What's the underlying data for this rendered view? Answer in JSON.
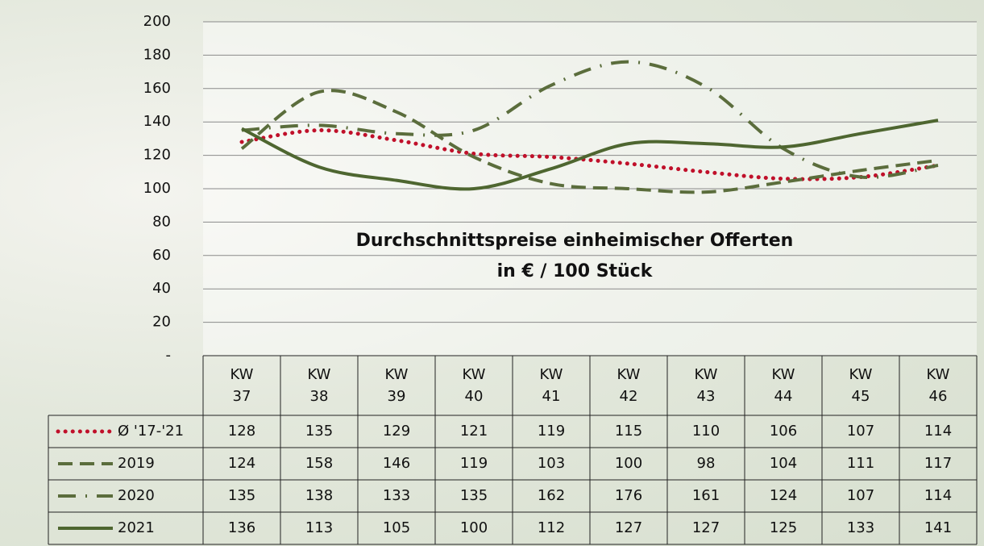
{
  "chart_data": {
    "type": "line",
    "title": "Durchschnittspreise einheimischer Offerten",
    "subtitle": "in € / 100 Stück",
    "categories": [
      "KW 37",
      "KW 38",
      "KW 39",
      "KW 40",
      "KW 41",
      "KW 42",
      "KW 43",
      "KW 44",
      "KW 45",
      "KW 46"
    ],
    "series": [
      {
        "name": "Ø '17-'21",
        "color": "#c0102a",
        "dash": "dotted",
        "values": [
          128,
          135,
          129,
          121,
          119,
          115,
          110,
          106,
          107,
          114
        ]
      },
      {
        "name": "2019",
        "color": "#5b6d3c",
        "dash": "dashed",
        "values": [
          124,
          158,
          146,
          119,
          103,
          100,
          98,
          104,
          111,
          117
        ]
      },
      {
        "name": "2020",
        "color": "#5b6d3c",
        "dash": "dashdot",
        "values": [
          135,
          138,
          133,
          135,
          162,
          176,
          161,
          124,
          107,
          114
        ]
      },
      {
        "name": "2021",
        "color": "#4e6630",
        "dash": "solid",
        "values": [
          136,
          113,
          105,
          100,
          112,
          127,
          127,
          125,
          133,
          141
        ]
      }
    ],
    "ylim": [
      0,
      200
    ],
    "yticks": [
      {
        "value": 0,
        "label": "-"
      },
      20,
      40,
      60,
      80,
      100,
      120,
      140,
      160,
      180,
      200
    ],
    "grid": true,
    "data_table": true
  }
}
